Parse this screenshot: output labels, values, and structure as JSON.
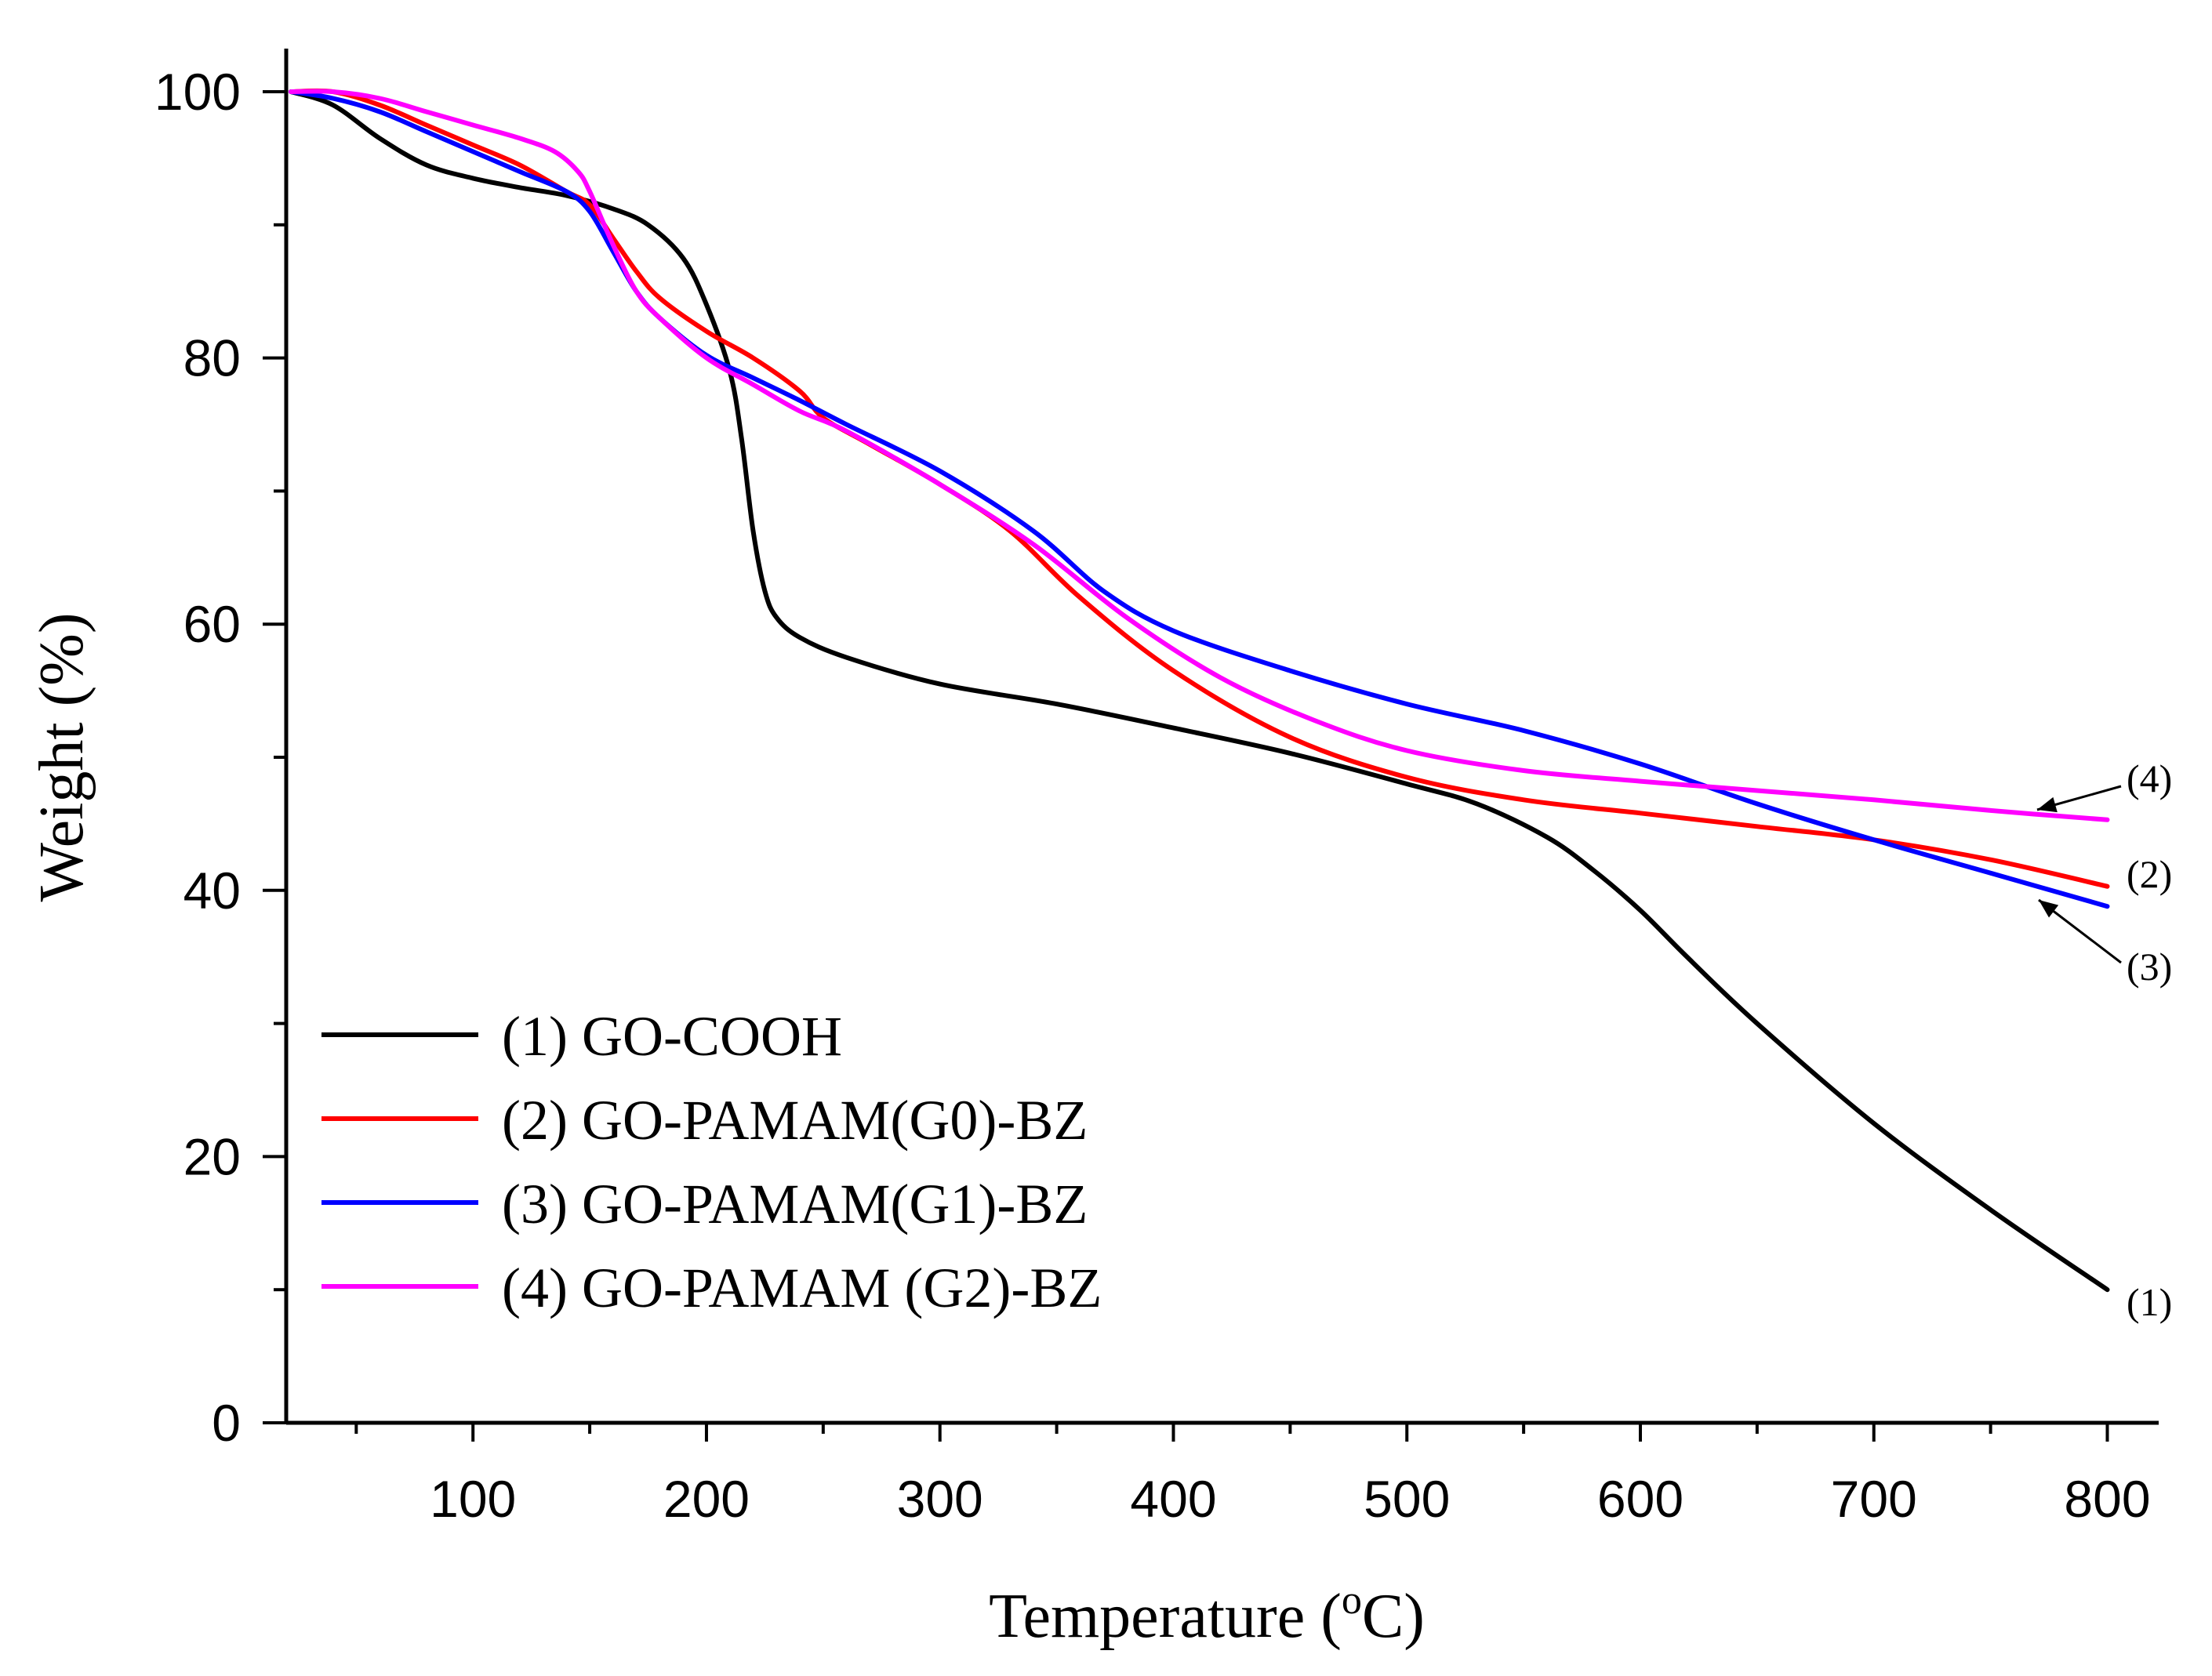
{
  "chart_data": {
    "type": "line",
    "title": "",
    "xlabel": "Temperature (",
    "xlabel_sup": "o",
    "xlabel_end": "C)",
    "ylabel": "Weight (%)",
    "xlim": [
      20,
      822
    ],
    "ylim": [
      0,
      100
    ],
    "x_ticks": [
      100,
      200,
      300,
      400,
      500,
      600,
      700,
      800
    ],
    "x_tick_labels": [
      "100",
      "200",
      "300",
      "400",
      "500",
      "600",
      "700",
      "800"
    ],
    "x_minor_ticks": [
      50,
      150,
      250,
      350,
      450,
      550,
      650,
      750
    ],
    "y_ticks": [
      0,
      20,
      40,
      60,
      80,
      100
    ],
    "y_tick_labels": [
      "0",
      "20",
      "40",
      "60",
      "80",
      "100"
    ],
    "y_minor_ticks": [
      10,
      30,
      50,
      70,
      90
    ],
    "legend_position": "bottom-left",
    "series": [
      {
        "name": "(1) GO-COOH",
        "end_label": "(1)",
        "color": "#000000",
        "x": [
          22,
          40,
          60,
          80,
          100,
          120,
          140,
          160,
          175,
          190,
          200,
          210,
          215,
          220,
          225,
          230,
          240,
          260,
          300,
          350,
          400,
          450,
          500,
          530,
          560,
          580,
          600,
          620,
          650,
          700,
          750,
          800
        ],
        "y": [
          100,
          99,
          96.5,
          94.5,
          93.5,
          92.8,
          92.2,
          91.2,
          90,
          87.5,
          84,
          79,
          74,
          67,
          62.5,
          60.5,
          59,
          57.5,
          55.5,
          54,
          52.2,
          50.3,
          48,
          46.5,
          44,
          41.5,
          38.5,
          35,
          30,
          22.5,
          16,
          10
        ]
      },
      {
        "name": "(2) GO-PAMAM(G0)-BZ",
        "end_label": "(2)",
        "color": "#ff0000",
        "x": [
          22,
          40,
          60,
          80,
          100,
          120,
          140,
          150,
          160,
          170,
          180,
          200,
          220,
          240,
          250,
          270,
          300,
          330,
          360,
          400,
          450,
          500,
          550,
          600,
          650,
          700,
          750,
          800
        ],
        "y": [
          100,
          100,
          99,
          97.5,
          96,
          94.5,
          92.5,
          91.5,
          89,
          86.5,
          84.5,
          82,
          80,
          77.5,
          75.5,
          73.5,
          70.5,
          67,
          62,
          56.5,
          51.5,
          48.5,
          46.8,
          45.8,
          44.8,
          43.8,
          42.3,
          40.3
        ]
      },
      {
        "name": "(3) GO-PAMAM(G1)-BZ",
        "end_label": "(3)",
        "color": "#0000ff",
        "x": [
          22,
          40,
          60,
          80,
          100,
          120,
          140,
          150,
          160,
          170,
          180,
          200,
          220,
          240,
          260,
          300,
          340,
          370,
          400,
          450,
          500,
          550,
          600,
          650,
          700,
          750,
          800
        ],
        "y": [
          100,
          99.5,
          98.5,
          97,
          95.5,
          94,
          92.5,
          91,
          88,
          85,
          83,
          80.2,
          78.5,
          76.8,
          75,
          71.5,
          67,
          62.5,
          59.5,
          56.5,
          54,
          52,
          49.5,
          46.5,
          43.8,
          41.3,
          38.8
        ]
      },
      {
        "name": "(4) GO-PAMAM (G2)-BZ",
        "end_label": "(4)",
        "color": "#ff00ff",
        "x": [
          22,
          40,
          60,
          80,
          100,
          120,
          135,
          145,
          150,
          160,
          170,
          180,
          200,
          220,
          240,
          260,
          300,
          340,
          380,
          420,
          460,
          500,
          550,
          600,
          650,
          700,
          750,
          800
        ],
        "y": [
          100,
          100,
          99.5,
          98.5,
          97.5,
          96.5,
          95.5,
          94,
          92.5,
          88.5,
          85,
          83,
          80,
          78,
          76,
          74.5,
          70.5,
          66,
          60.5,
          56,
          52.8,
          50.5,
          49,
          48.2,
          47.5,
          46.8,
          46,
          45.3
        ]
      }
    ]
  }
}
